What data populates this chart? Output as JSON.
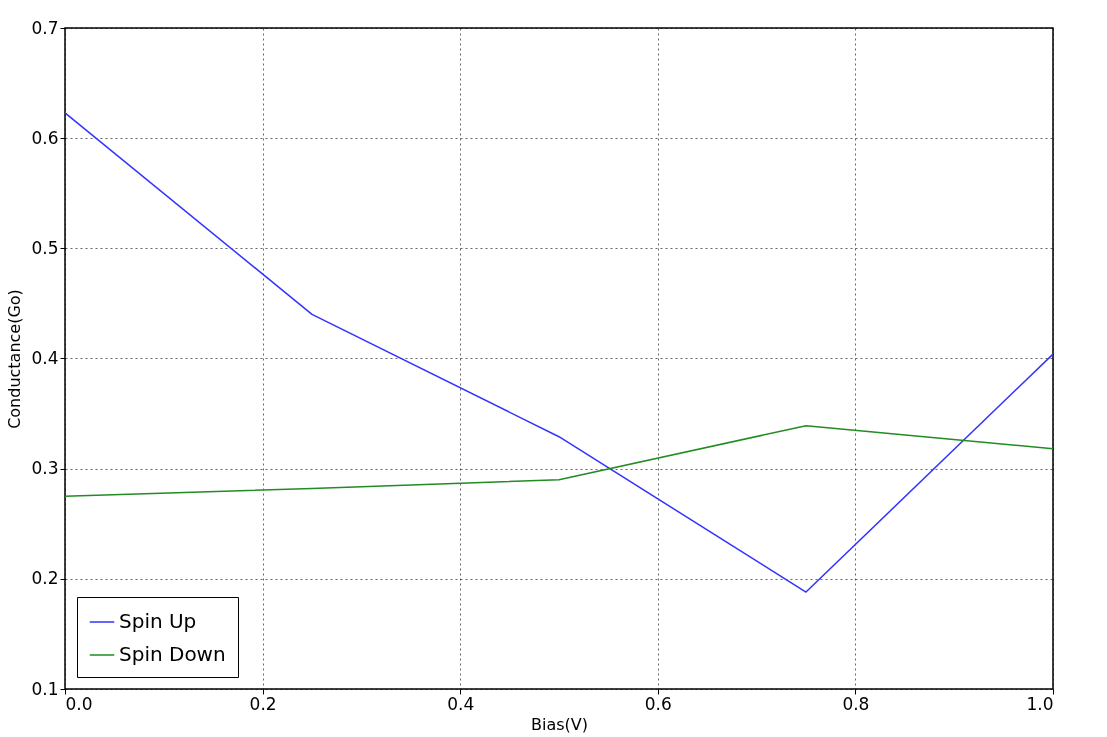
{
  "chart_data": {
    "type": "line",
    "xlabel": "Bias(V)",
    "ylabel": "Conductance(Go)",
    "x": [
      0,
      0.25,
      0.5,
      0.75,
      1.0
    ],
    "series": [
      {
        "name": "Spin Up",
        "color": "#3333ff",
        "values": [
          0.623,
          0.44,
          0.329,
          0.188,
          0.404
        ]
      },
      {
        "name": "Spin Down",
        "color": "#228b22",
        "values": [
          0.275,
          0.282,
          0.29,
          0.339,
          0.318
        ]
      }
    ],
    "xlim": [
      0.0,
      1.0
    ],
    "xticks": [
      {
        "value": 0,
        "label": "0.0"
      },
      0.2,
      0.4,
      0.6,
      0.8,
      {
        "value": 1,
        "label": "1.0"
      }
    ],
    "ylim": [
      0.1,
      0.7
    ],
    "yticks": [
      0.1,
      0.2,
      0.3,
      0.4,
      0.5,
      0.6,
      0.7
    ],
    "grid": true,
    "legend": "bottom left",
    "marker": "none",
    "line_style": "solid"
  }
}
